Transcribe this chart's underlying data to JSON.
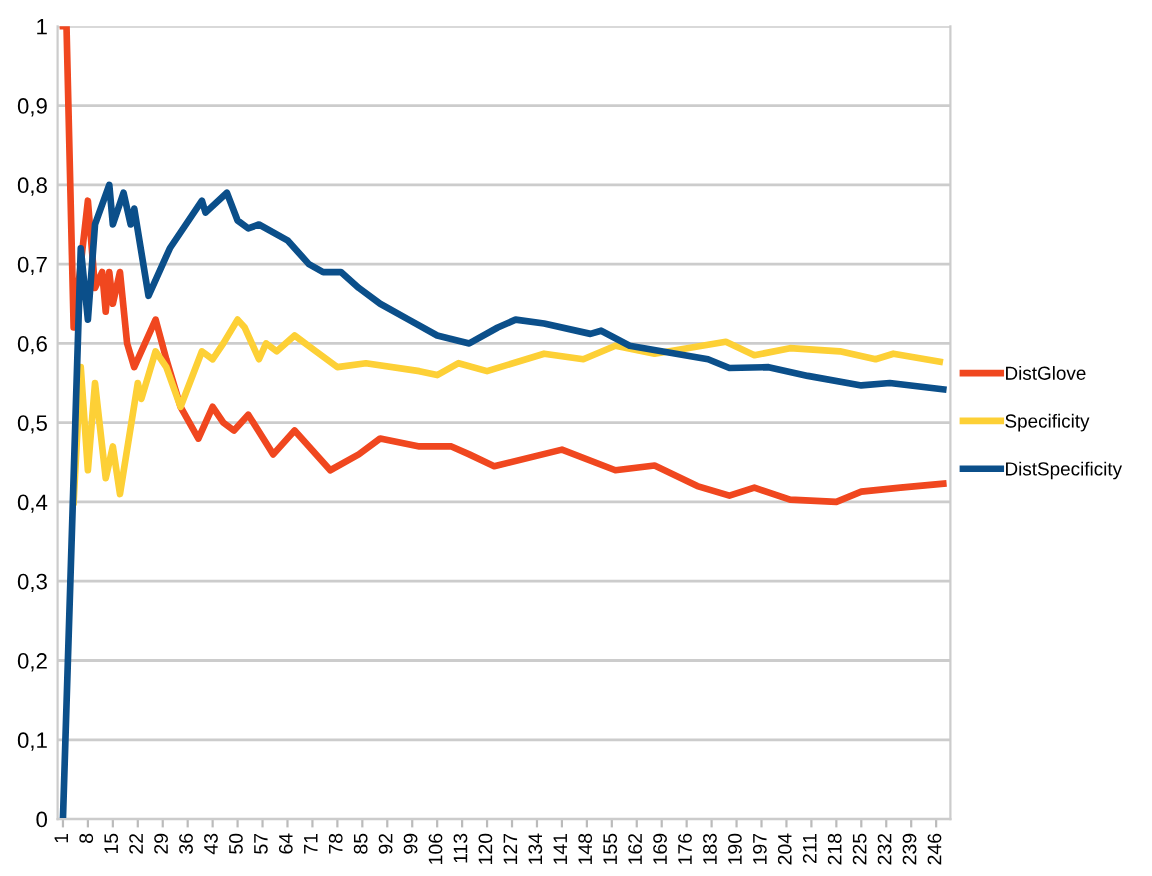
{
  "chart_data": {
    "type": "line",
    "legend": "right",
    "grid": "y",
    "marker": "none",
    "line_style": "solid",
    "xlim": [
      -0.5,
      250
    ],
    "xticks": [
      1,
      8,
      15,
      22,
      29,
      36,
      43,
      50,
      57,
      64,
      71,
      78,
      85,
      92,
      99,
      106,
      113,
      120,
      127,
      134,
      141,
      148,
      155,
      162,
      169,
      176,
      183,
      190,
      197,
      204,
      211,
      218,
      225,
      232,
      239,
      246
    ],
    "ylim": [
      0,
      1
    ],
    "yticks": [
      0,
      {
        "value": 0.1,
        "label": "0,1"
      },
      {
        "value": 0.2,
        "label": "0,2"
      },
      {
        "value": 0.3,
        "label": "0,3"
      },
      {
        "value": 0.4,
        "label": "0,4"
      },
      {
        "value": 0.5,
        "label": "0,5"
      },
      {
        "value": 0.6,
        "label": "0,6"
      },
      {
        "value": 0.7,
        "label": "0,7"
      },
      {
        "value": 0.8,
        "label": "0,8"
      },
      {
        "value": 0.9,
        "label": "0,9"
      },
      1
    ],
    "series": [
      {
        "name": "DistGlove",
        "color": "#f0471f",
        "x": [
          1,
          2,
          4,
          8,
          10,
          12,
          13,
          14,
          15,
          17,
          19,
          21,
          27,
          30,
          34,
          39,
          43,
          46,
          49,
          53,
          60,
          66,
          76,
          84,
          90,
          101,
          110,
          115,
          122,
          141,
          156,
          167,
          179,
          188,
          195,
          205,
          218,
          225,
          236,
          248
        ],
        "values": [
          1.0,
          1.0,
          0.62,
          0.78,
          0.67,
          0.69,
          0.64,
          0.69,
          0.65,
          0.69,
          0.6,
          0.57,
          0.63,
          0.58,
          0.52,
          0.48,
          0.52,
          0.5,
          0.49,
          0.51,
          0.46,
          0.49,
          0.44,
          0.46,
          0.48,
          0.47,
          0.47,
          0.46,
          0.445,
          0.466,
          0.44,
          0.446,
          0.42,
          0.408,
          0.418,
          0.403,
          0.4,
          0.413,
          0.418,
          0.423
        ]
      },
      {
        "name": "Specificity",
        "color": "#fdd036",
        "x": [
          4,
          6,
          8,
          10,
          13,
          15,
          17,
          22,
          23,
          27,
          30,
          34,
          40,
          43,
          46,
          50,
          52,
          56,
          58,
          61,
          66,
          72,
          78,
          86,
          101,
          106,
          112,
          120,
          136,
          147,
          156,
          167,
          187,
          195,
          205,
          219,
          229,
          234,
          247
        ],
        "values": [
          0.4,
          0.57,
          0.44,
          0.55,
          0.43,
          0.47,
          0.41,
          0.55,
          0.53,
          0.59,
          0.57,
          0.52,
          0.59,
          0.58,
          0.6,
          0.63,
          0.62,
          0.58,
          0.6,
          0.59,
          0.61,
          0.59,
          0.57,
          0.575,
          0.565,
          0.56,
          0.575,
          0.565,
          0.587,
          0.58,
          0.597,
          0.587,
          0.602,
          0.585,
          0.594,
          0.59,
          0.58,
          0.587,
          0.577
        ]
      },
      {
        "name": "DistSpecificity",
        "color": "#0b4f8a",
        "x": [
          1,
          6,
          8,
          10,
          14,
          15,
          18,
          20,
          21,
          25,
          31,
          40,
          41,
          47,
          50,
          53,
          56,
          64,
          70,
          74,
          79,
          84,
          90,
          98,
          106,
          115,
          123,
          128,
          136,
          149,
          152,
          160,
          173,
          182,
          188,
          199,
          210,
          225,
          233,
          248
        ],
        "values": [
          0.0,
          0.72,
          0.63,
          0.75,
          0.8,
          0.75,
          0.79,
          0.75,
          0.77,
          0.66,
          0.72,
          0.78,
          0.765,
          0.79,
          0.755,
          0.745,
          0.75,
          0.73,
          0.7,
          0.69,
          0.69,
          0.67,
          0.65,
          0.63,
          0.61,
          0.6,
          0.62,
          0.63,
          0.625,
          0.612,
          0.616,
          0.597,
          0.587,
          0.58,
          0.569,
          0.57,
          0.559,
          0.547,
          0.55,
          0.542
        ]
      }
    ]
  }
}
